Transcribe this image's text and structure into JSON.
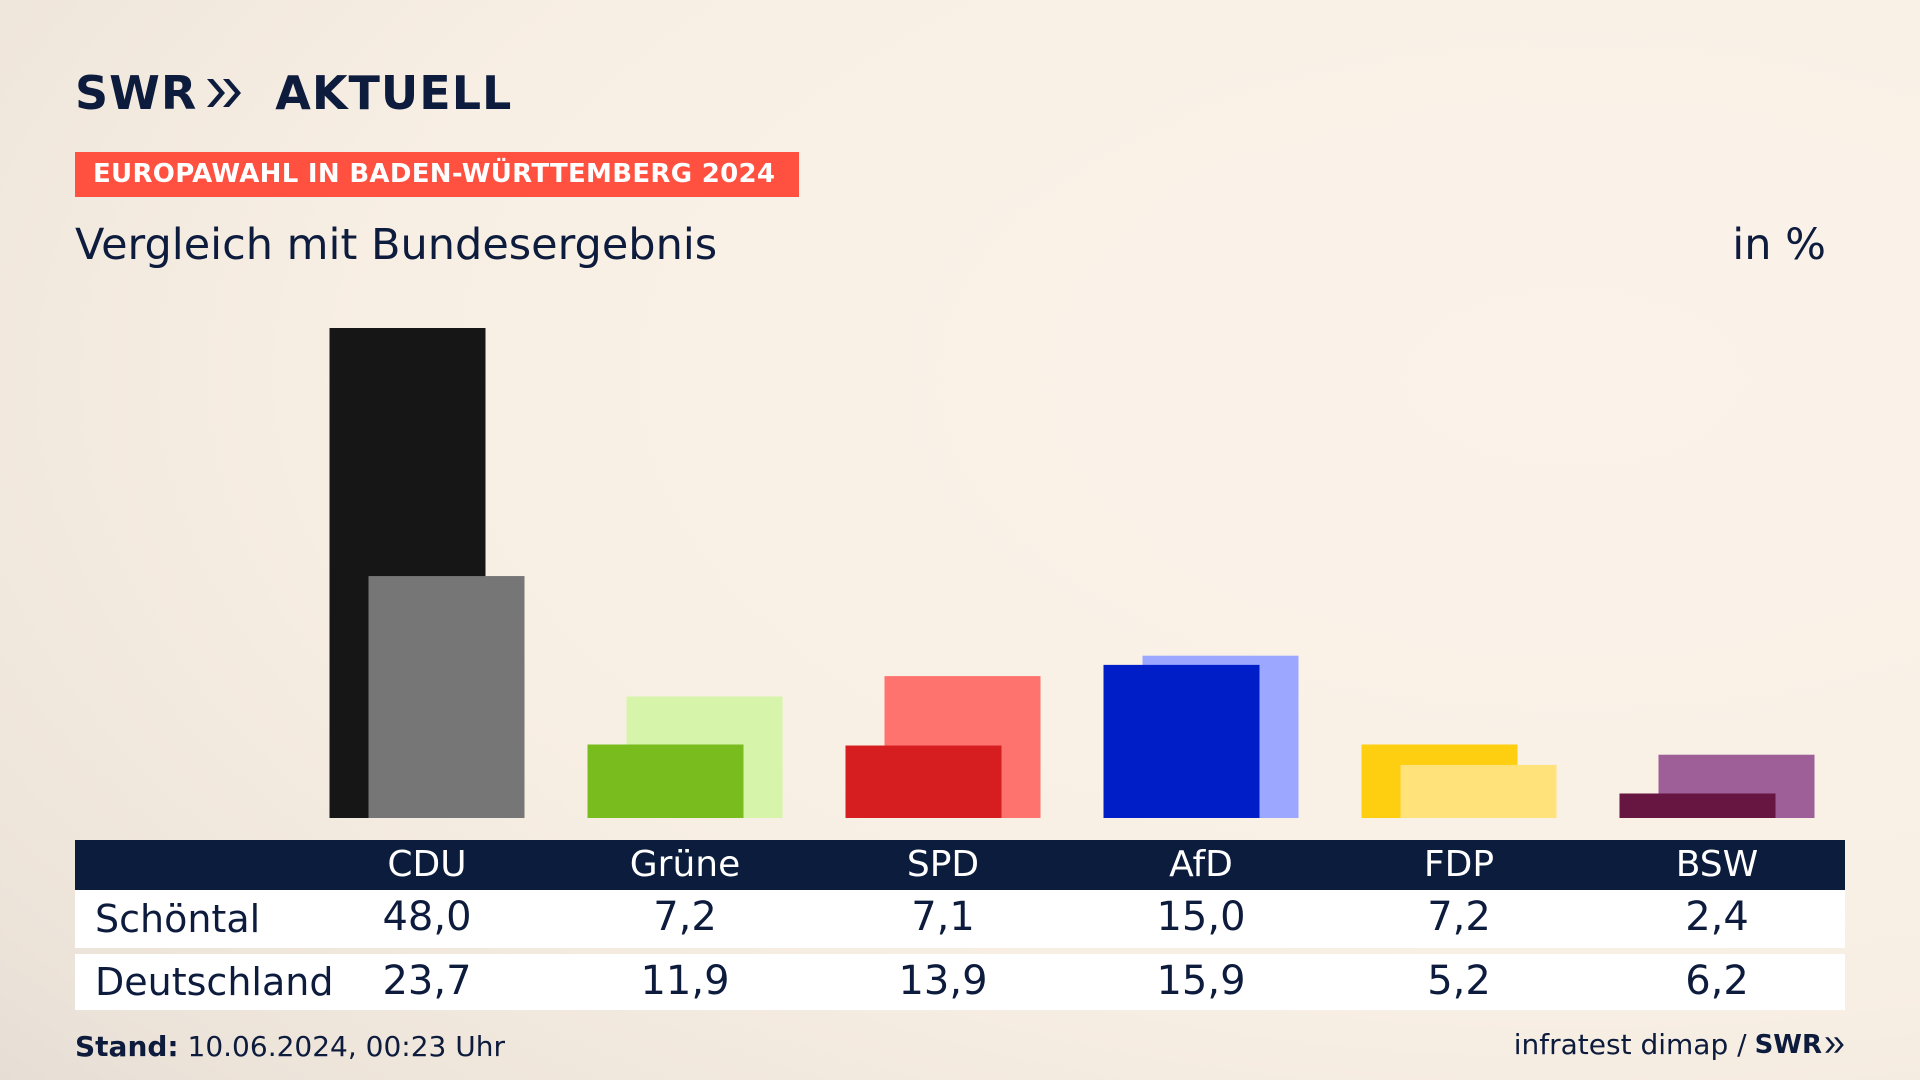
{
  "header": {
    "brand_swr": "SWR",
    "brand_aktuell": "AKTUELL",
    "banner": "EUROPAWAHL IN BADEN-WÜRTTEMBERG 2024",
    "title": "Vergleich mit Bundesergebnis",
    "unit": "in %"
  },
  "chart_data": {
    "type": "bar",
    "categories": [
      "CDU",
      "Grüne",
      "SPD",
      "AfD",
      "FDP",
      "BSW"
    ],
    "series": [
      {
        "name": "Schöntal",
        "values": [
          48.0,
          7.2,
          7.1,
          15.0,
          7.2,
          2.4
        ]
      },
      {
        "name": "Deutschland",
        "values": [
          23.7,
          11.9,
          13.9,
          15.9,
          5.2,
          6.2
        ]
      }
    ],
    "colors_primary": [
      "#161616",
      "#78bc1e",
      "#d61e20",
      "#001ec8",
      "#fece10",
      "#661640"
    ],
    "colors_secondary": [
      "#767676",
      "#d6f5aa",
      "#ff736f",
      "#9ca8ff",
      "#ffe27a",
      "#9e5f98"
    ],
    "ylim": [
      0,
      48
    ]
  },
  "table": {
    "rows": [
      {
        "label": "Schöntal",
        "values": [
          "48,0",
          "7,2",
          "7,1",
          "15,0",
          "7,2",
          "2,4"
        ]
      },
      {
        "label": "Deutschland",
        "values": [
          "23,7",
          "11,9",
          "13,9",
          "15,9",
          "5,2",
          "6,2"
        ]
      }
    ]
  },
  "footer": {
    "stand_label": "Stand:",
    "stand_value": "10.06.2024, 00:23 Uhr",
    "source": "infratest dimap /",
    "brand": "SWR"
  }
}
